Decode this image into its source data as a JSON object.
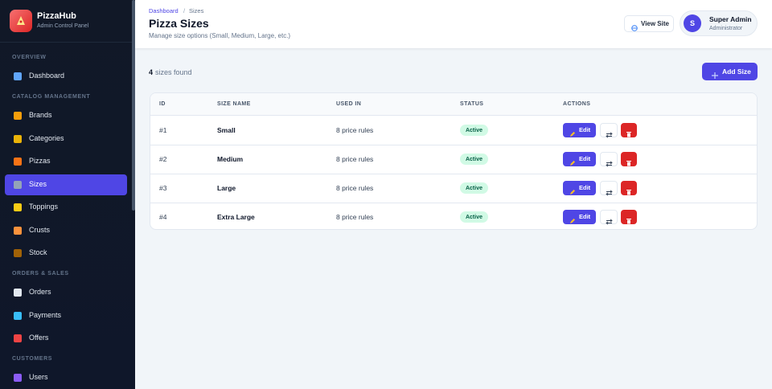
{
  "sidebar": {
    "brand": "PizzaHub",
    "tagline": "Admin Control Panel",
    "sections": [
      {
        "label": "OVERVIEW",
        "items": [
          "Dashboard"
        ]
      },
      {
        "label": "CATALOG MANAGEMENT",
        "items": [
          "Brands",
          "Categories",
          "Pizzas",
          "Sizes",
          "Toppings",
          "Crusts",
          "Stock"
        ]
      },
      {
        "label": "ORDERS & SALES",
        "items": [
          "Orders",
          "Payments",
          "Offers"
        ]
      },
      {
        "label": "CUSTOMERS",
        "items": [
          "Users"
        ]
      }
    ],
    "active": "Sizes"
  },
  "header": {
    "breadcrumb": [
      "Dashboard",
      "Sizes"
    ],
    "separator": "/",
    "title": "Pizza Sizes",
    "subtitle": "Manage size options (Small, Medium, Large, etc.)",
    "view_site": "View Site",
    "user": {
      "initial": "S",
      "name": "Super Admin",
      "role": "Administrator"
    }
  },
  "toolbar": {
    "count": 4,
    "count_text": "sizes found",
    "add_button": "Add Size"
  },
  "table": {
    "columns": [
      "ID",
      "SIZE NAME",
      "USED IN",
      "STATUS",
      "ACTIONS"
    ],
    "rows": [
      [
        "#1",
        "Small",
        "8 price rules",
        "Active"
      ],
      [
        "#2",
        "Medium",
        "8 price rules",
        "Active"
      ],
      [
        "#3",
        "Large",
        "8 price rules",
        "Active"
      ],
      [
        "#4",
        "Extra Large",
        "8 price rules",
        "Active"
      ]
    ],
    "edit_label": "Edit"
  }
}
